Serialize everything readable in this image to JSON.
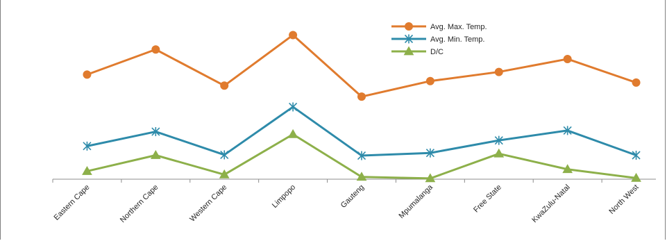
{
  "chart_data": {
    "type": "line",
    "categories": [
      "Eastern Cape",
      "Northern Cape",
      "Western Cape",
      "Limpopo",
      "Gauteng",
      "Mpumalanga",
      "Free State",
      "KwaZulu-Natal",
      "North West"
    ],
    "series": [
      {
        "name": "Avg. Max. Temp.",
        "color": "#E07B2E",
        "marker": "circle",
        "values": [
          27.5,
          34.1,
          24.6,
          37.9,
          21.7,
          25.8,
          28.2,
          31.6,
          25.4
        ]
      },
      {
        "name": "Avg. Min. Temp.",
        "color": "#2E8BAA",
        "marker": "star",
        "values": [
          8.7,
          12.5,
          6.4,
          19.0,
          6.2,
          6.9,
          10.2,
          12.8,
          6.3
        ]
      },
      {
        "name": "D/C",
        "color": "#8DB04A",
        "marker": "triangle",
        "values": [
          2.1,
          6.3,
          1.2,
          11.8,
          0.6,
          0.2,
          6.7,
          2.6,
          0.3
        ]
      }
    ],
    "ylim": [
      0,
      42
    ],
    "xlabel": "",
    "ylabel": "",
    "title": "",
    "grid": false,
    "legend_position": "top-right"
  }
}
